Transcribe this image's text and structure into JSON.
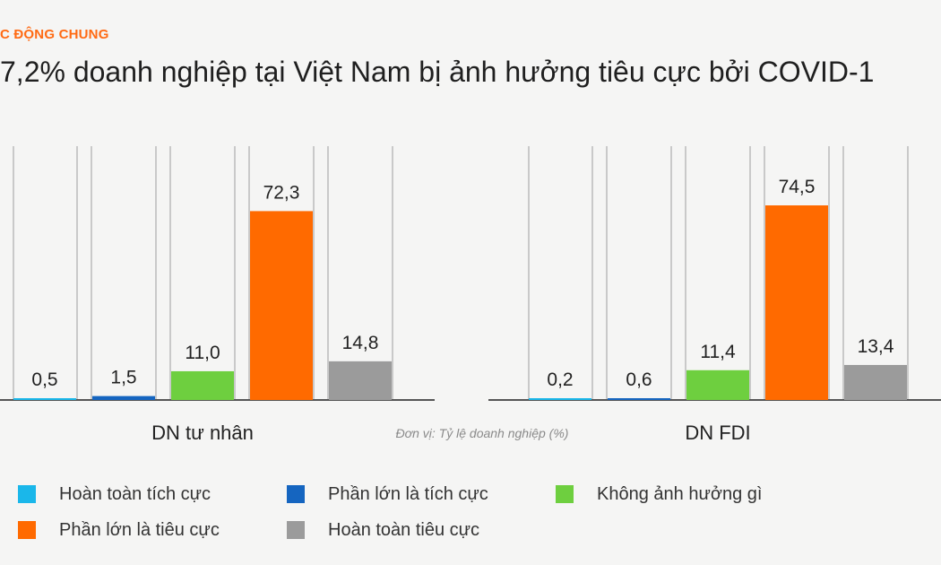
{
  "header": {
    "kicker": "C ĐỘNG CHUNG",
    "title": "7,2% doanh nghiệp tại Việt Nam bị ảnh hưởng tiêu cực bởi COVID-1"
  },
  "colors": {
    "hoan_toan_tich_cuc": "#1ab7ea",
    "phan_lon_tich_cuc": "#1565c0",
    "khong_anh_huong": "#6ecf3f",
    "phan_lon_tieu_cuc": "#ff6a00",
    "hoan_toan_tieu_cuc": "#9b9b9b"
  },
  "chart_data": {
    "type": "bar",
    "unit_note": "Đơn vị: Tỷ lệ doanh nghiệp (%)",
    "groups": [
      "DN tư nhân",
      "DN FDI"
    ],
    "series": [
      {
        "name": "Hoàn toàn tích cực",
        "values": [
          0.5,
          0.2
        ],
        "labels": [
          "0,5",
          "0,2"
        ],
        "color": "#1ab7ea"
      },
      {
        "name": "Phần lớn là tích cực",
        "values": [
          1.5,
          0.6
        ],
        "labels": [
          "1,5",
          "0,6"
        ],
        "color": "#1565c0"
      },
      {
        "name": "Không ảnh hưởng gì",
        "values": [
          11.0,
          11.4
        ],
        "labels": [
          "11,0",
          "11,4"
        ],
        "color": "#6ecf3f"
      },
      {
        "name": "Phần lớn là tiêu cực",
        "values": [
          72.3,
          74.5
        ],
        "labels": [
          "72,3",
          "74,5"
        ],
        "color": "#ff6a00"
      },
      {
        "name": "Hoàn toàn tiêu cực",
        "values": [
          14.8,
          13.4
        ],
        "labels": [
          "14,8",
          "13,4"
        ],
        "color": "#9b9b9b"
      }
    ],
    "ylim": [
      0,
      74.5
    ],
    "legend_position": "bottom"
  }
}
